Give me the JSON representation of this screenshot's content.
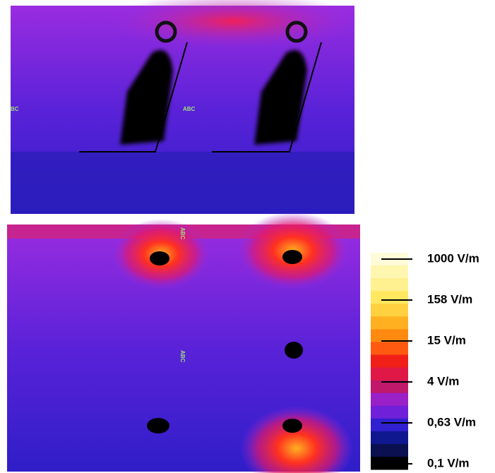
{
  "panels": {
    "top": {
      "labels": [
        "BC",
        "ABC"
      ]
    },
    "bottom": {
      "labels": [
        "ABC",
        "ABC"
      ]
    }
  },
  "legend": {
    "labels": [
      "1000 V/m",
      "158 V/m",
      "15 V/m",
      "4 V/m",
      "0,63 V/m",
      "0,1 V/m"
    ]
  }
}
